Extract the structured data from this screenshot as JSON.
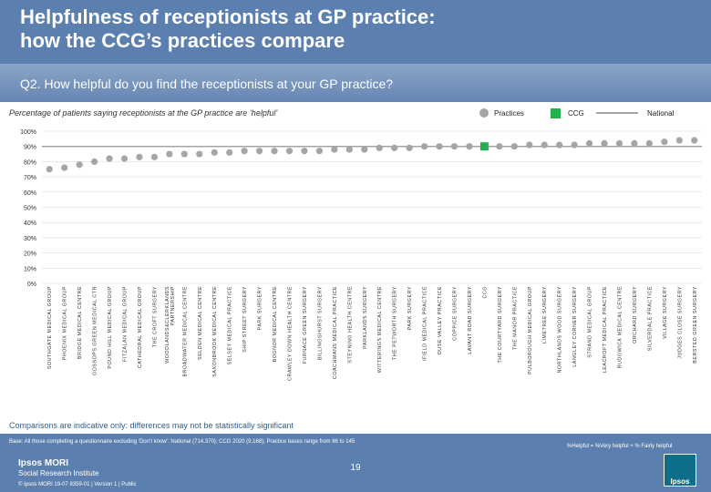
{
  "header": {
    "title_line1": "Helpfulness of receptionists at GP practice:",
    "title_line2": "how the CCG’s practices compare",
    "question": "Q2. How helpful do you find the receptionists at your GP practice?"
  },
  "legend": {
    "practices": "Practices",
    "ccg": "CCG",
    "national": "National"
  },
  "colors": {
    "practice": "#a5a5a5",
    "ccg": "#22b14c",
    "grid": "#dcdcdc",
    "axis_text": "#333333"
  },
  "chart_data": {
    "type": "scatter",
    "title": "Percentage of patients saying receptionists at the GP practice are ‘helpful’",
    "ylim": [
      0,
      100
    ],
    "yticks": [
      0,
      10,
      20,
      30,
      40,
      50,
      60,
      70,
      80,
      90,
      100
    ],
    "ytick_labels": [
      "0%",
      "10%",
      "20%",
      "30%",
      "40%",
      "50%",
      "60%",
      "70%",
      "80%",
      "90%",
      "100%"
    ],
    "national_value": 90,
    "categories": [
      "SOUTHGATE MEDICAL GROUP",
      "PHOENIX MEDICAL GROUP",
      "BRIDGE MEDICAL CENTRE",
      "GOSSOPS GREEN MEDICAL CTR",
      "POUND HILL MEDICAL GROUP",
      "FITZALAN MEDICAL GROUP",
      "CATHEDRAL MEDICAL GROUP",
      "THE CROFT SURGERY",
      "WOODLANDS&CLERKLANDS PARTNERSHIP",
      "BROADWATER MEDICAL CENTRE",
      "SELDEN MEDICAL CENTRE",
      "SAXONBROOK MEDICAL CENTRE",
      "SELSEY MEDICAL PRACTICE",
      "SHIP STREET SURGERY",
      "PARK SURGERY",
      "BOGNOR MEDICAL CENTRE",
      "CRAWLEY DOWN HEALTH CENTRE",
      "FURNACE GREEN SURGERY",
      "BILLINGSHURST SURGERY",
      "COACHMANS MEDICAL PRACTICE",
      "STEYNING HEALTH CENTRE",
      "PARKLANDS SURGERY",
      "WITTERINGS MEDICAL CENTRE",
      "THE PETWORTH SURGERY",
      "PARK SURGERY",
      "IFIELD MEDICAL PRACTICE",
      "OUSE VALLEY PRACTICE",
      "COPPICE SURGERY",
      "LAVANT ROAD SURGERY",
      "CCG",
      "THE COURTYARD SURGERY",
      "THE MANOR PRACTICE",
      "PULBOROUGH MEDICAL GROUP",
      "LIMETREE SURGERY",
      "NORTHLANDS WOOD SURGERY",
      "LANGLEY CORNER SURGERY",
      "STRAND MEDICAL GROUP",
      "LEACROFT MEDICAL PRACTICE",
      "RUDGWICK MEDICAL CENTRE",
      "ORCHARD SURGERY",
      "SILVERDALE PRACTICE",
      "VILLAGE SURGERY",
      "JUDGES CLOSE SURGERY",
      "BERSTED GREEN SURGERY"
    ],
    "values": [
      75,
      76,
      78,
      80,
      82,
      82,
      83,
      83,
      85,
      85,
      85,
      86,
      86,
      87,
      87,
      87,
      87,
      87,
      87,
      88,
      88,
      88,
      89,
      89,
      89,
      90,
      90,
      90,
      90,
      90,
      90,
      90,
      91,
      91,
      91,
      91,
      92,
      92,
      92,
      92,
      92,
      93,
      94,
      94
    ],
    "highlight_index": 29
  },
  "notes": {
    "comparison": "Comparisons are indicative only: differences may not be statistically significant",
    "base": "Base: All those completing a questionnaire excluding ‘Don’t know’: National (714,370); CCG 2020 (9,168); Practice bases range from 86 to 145",
    "definition": "%Helpful = %Very helpful + % Fairly helpful"
  },
  "footer": {
    "page_number": "19",
    "logo_line1": "Ipsos MORI",
    "logo_line2": "Social Research Institute",
    "copyright": "© Ipsos MORI     19-07 8359-01 | Version 1 | Public",
    "brand": "Ipsos"
  }
}
